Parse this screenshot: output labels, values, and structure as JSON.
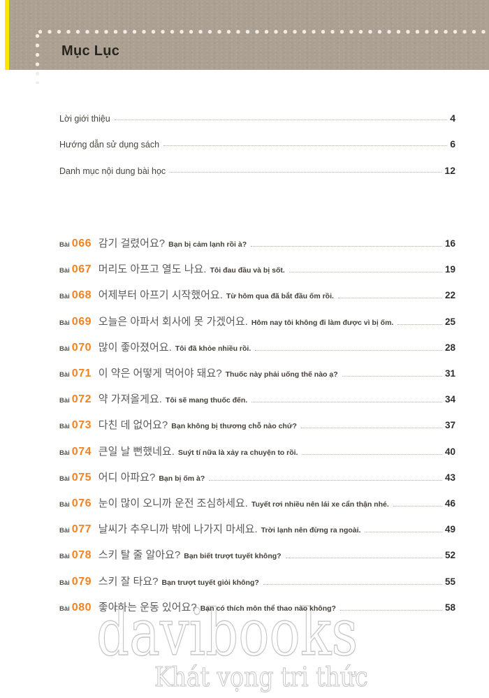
{
  "header": {
    "title": "Mục Lục"
  },
  "intro_items": [
    {
      "label": "Lời giới thiệu",
      "page": "4"
    },
    {
      "label": "Hướng dẫn sử dụng sách",
      "page": "6"
    },
    {
      "label": "Danh mục nội dung bài học",
      "page": "12"
    }
  ],
  "lesson_prefix": "Bài",
  "lessons": [
    {
      "number": "066",
      "korean": "감기 걸렸어요?",
      "vietnamese": "Bạn bị cảm lạnh rồi à?",
      "page": "16"
    },
    {
      "number": "067",
      "korean": "머리도 아프고 열도 나요.",
      "vietnamese": "Tôi đau đầu và bị sốt.",
      "page": "19"
    },
    {
      "number": "068",
      "korean": "어제부터 아프기 시작했어요.",
      "vietnamese": "Từ hôm qua đã bắt đầu ốm rồi.",
      "page": "22"
    },
    {
      "number": "069",
      "korean": "오늘은 아파서 회사에 못 가겠어요.",
      "vietnamese": "Hôm nay tôi không đi làm được vì bị ốm.",
      "page": "25"
    },
    {
      "number": "070",
      "korean": "많이 좋아졌어요.",
      "vietnamese": "Tôi đã khỏe nhiều rồi.",
      "page": "28"
    },
    {
      "number": "071",
      "korean": "이 약은 어떻게 먹어야 돼요?",
      "vietnamese": "Thuốc này phải uống thế nào ạ?",
      "page": "31"
    },
    {
      "number": "072",
      "korean": "약 가져올게요.",
      "vietnamese": "Tôi sẽ mang thuốc đến.",
      "page": "34"
    },
    {
      "number": "073",
      "korean": "다친 데 없어요?",
      "vietnamese": "Bạn không bị thương chỗ nào chứ?",
      "page": "37"
    },
    {
      "number": "074",
      "korean": "큰일 날 뻔했네요.",
      "vietnamese": "Suýt tí nữa là xảy ra chuyện to rồi.",
      "page": "40"
    },
    {
      "number": "075",
      "korean": "어디 아파요?",
      "vietnamese": "Bạn bị ốm à?",
      "page": "43"
    },
    {
      "number": "076",
      "korean": "눈이 많이 오니까 운전 조심하세요.",
      "vietnamese": "Tuyết rơi nhiều nên lái xe cẩn thận nhé.",
      "page": "46"
    },
    {
      "number": "077",
      "korean": "날씨가 추우니까 밖에 나가지 마세요.",
      "vietnamese": "Trời lạnh nên đừng ra ngoài.",
      "page": "49"
    },
    {
      "number": "078",
      "korean": "스키 탈 줄 알아요?",
      "vietnamese": "Bạn biết trượt tuyết không?",
      "page": "52"
    },
    {
      "number": "079",
      "korean": "스키 잘 타요?",
      "vietnamese": "Bạn trượt tuyết giỏi không?",
      "page": "55"
    },
    {
      "number": "080",
      "korean": "좋아하는 운동 있어요?",
      "vietnamese": "Bạn có thích môn thể thao nào không?",
      "page": "58"
    }
  ],
  "watermark": {
    "brand": "davibooks",
    "slogan": "Khát vọng tri thức"
  },
  "colors": {
    "band": "#aca092",
    "band_dot": "#f2ede3",
    "edge_yellow": "#ffe600",
    "accent_orange": "#f58220",
    "leader_dot": "#b3ada3",
    "korean_gray": "#5a5a5a",
    "watermark_outline": "#c6c6c6"
  }
}
